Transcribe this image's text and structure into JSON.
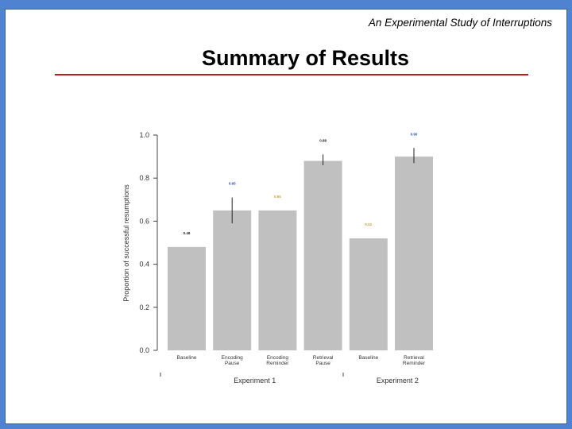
{
  "slide": {
    "header": "An Experimental Study of Interruptions",
    "title": "Summary of Results",
    "accent_color": "#c01818",
    "background_color": "#4f83d1"
  },
  "chart_data": {
    "type": "bar",
    "title": "",
    "xlabel": "",
    "ylabel": "Proportion of successful resumptions",
    "ylim": [
      0,
      1.0
    ],
    "yticks": [
      "0.0",
      "0.2",
      "0.4",
      "0.6",
      "0.8",
      "1.0"
    ],
    "categories": [
      "Baseline",
      "Encoding Pause",
      "Encoding Reminder",
      "Retrieval Pause",
      "Baseline",
      "Retrieval Reminder"
    ],
    "groups": [
      {
        "label": "Experiment 1",
        "count": 4
      },
      {
        "label": "Experiment 2",
        "count": 2
      }
    ],
    "values": [
      0.48,
      0.65,
      0.65,
      0.88,
      0.52,
      0.9
    ],
    "error_bars": [
      null,
      [
        0.59,
        0.71
      ],
      null,
      [
        0.86,
        0.91
      ],
      null,
      [
        0.87,
        0.94
      ]
    ],
    "data_labels": [
      "0.48",
      "0.65",
      "0.65",
      "0.88",
      "0.52",
      "0.90"
    ],
    "data_label_colors": [
      "#222222",
      "#2a4fa8",
      "#c8a23a",
      "#222222",
      "#c8a23a",
      "#2a4fa8"
    ],
    "bar_color": "#c0c0c0"
  }
}
